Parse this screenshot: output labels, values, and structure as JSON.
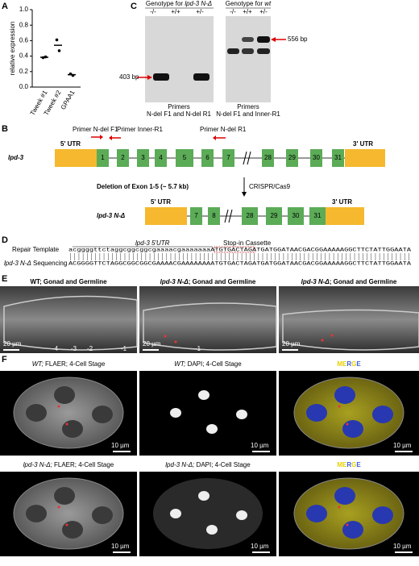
{
  "chart_data": {
    "type": "dot",
    "ylabel": "relative expression",
    "categories": [
      "Tweek #1",
      "Tweek #2",
      "GPAA1"
    ],
    "values": [
      [
        0.38,
        0.39
      ],
      [
        0.61,
        0.47
      ],
      [
        0.17,
        0.15
      ]
    ],
    "means": [
      0.385,
      0.54,
      0.16
    ],
    "color": "#000000",
    "ylim": [
      0,
      1.0
    ],
    "yticks": [
      {
        "value": 0,
        "label": "0.0"
      },
      {
        "value": 0.2,
        "label": "0.2"
      },
      {
        "value": 0.4,
        "label": "0.4"
      },
      {
        "value": 0.6,
        "label": "0.6"
      },
      {
        "value": 0.8,
        "label": "0.8"
      },
      {
        "value": 1.0,
        "label": "1.0"
      }
    ]
  },
  "panel_labels": [
    "A",
    "B",
    "C",
    "D",
    "E",
    "F"
  ],
  "gel": {
    "title1_prefix": "Genotype for ",
    "title1_gene": "lpd-3 N-Δ",
    "title2_prefix": "Genotype for ",
    "title2_gene": "wt",
    "lanes": [
      "-/-",
      "+/+",
      "+/-"
    ],
    "band1": "403 bp",
    "band2": "556 bp",
    "primer_word": "Primers",
    "primers1": "N-del F1 and N-del R1",
    "primers2": "N-del F1 and Inner-R1"
  },
  "gene": {
    "name": "lpd-3",
    "utr5": "5' UTR",
    "utr3": "3' UTR",
    "exons": [
      "1",
      "2",
      "3",
      "4",
      "5",
      "6",
      "7",
      "28",
      "29",
      "30",
      "31"
    ],
    "primer_f1": "Primer N-del F1",
    "primer_inner": "Primer Inner-R1",
    "primer_r1": "Primer N-del R1",
    "deletion": "Deletion of Exon 1-5 (~ 5.7 kb)",
    "method": "CRISPR/Cas9",
    "mutant": "lpd-3 N-Δ",
    "mutant_exons": [
      "7",
      "8",
      "28",
      "29",
      "30",
      "31"
    ]
  },
  "sequence": {
    "utr_label": "lpd-3 5'UTR",
    "cassette_label": "Stop-in Cassette",
    "row1_label": "Repair Template",
    "row2_label_gene": "lpd-3 N-Δ",
    "row2_label_rest": " Sequencing",
    "row1": "acggggttctaggcggcggcgaaaacgaaaaaaaATGTGACTAGATGATGGATAACGACGGAAAAAGGCTTCTATTGGAATA",
    "row2": "ACGGGGTTCTAGGCGGCGGCGAAAACGAAAAAAAATGTGACTAGATGATGGATAACGACGGAAAAAGGCTTCTATTGGAATA"
  },
  "gonad": {
    "wt_title": "WT; Gonad and Germline",
    "mut_gene": "lpd-3 N-Δ",
    "mut_rest": "; Gonad and Germline",
    "scale": "20 µm",
    "positions": [
      "-4",
      "-3",
      "-2",
      "-1"
    ]
  },
  "embryo": {
    "wt": "WT;",
    "mut": "lpd-3 N-Δ;",
    "flaer": " FLAER; 4-Cell Stage",
    "dapi": " DAPI; 4-Cell Stage",
    "merge": [
      "M",
      "E",
      "R",
      "G",
      "E"
    ],
    "scale": "10 µm"
  }
}
